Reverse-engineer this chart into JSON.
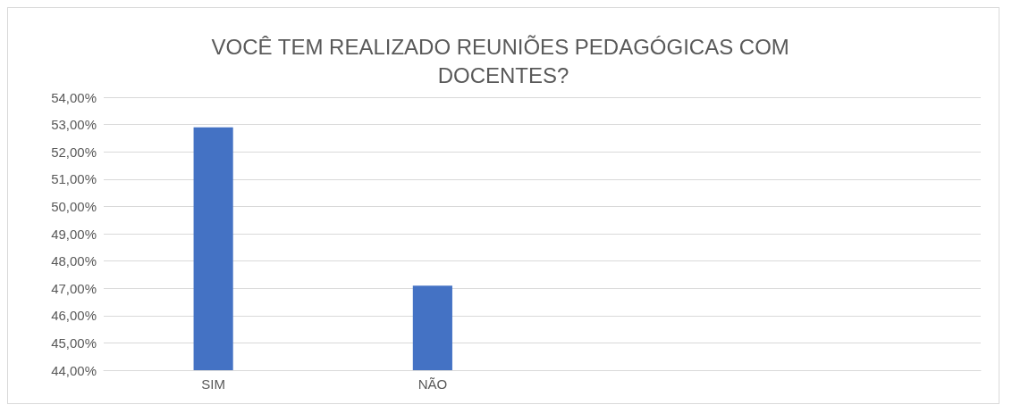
{
  "chart_data": {
    "type": "bar",
    "title": "VOCÊ TEM REALIZADO REUNIÕES PEDAGÓGICAS COM DOCENTES?",
    "categories": [
      "SIM",
      "NÃO",
      null,
      null
    ],
    "series": [
      {
        "color": "#4472c4",
        "values": [
          52.9,
          47.1,
          null,
          null
        ]
      }
    ],
    "ylim": [
      44,
      54
    ],
    "yticks": [
      {
        "value": 44,
        "label": "44,00%"
      },
      {
        "value": 45,
        "label": "45,00%"
      },
      {
        "value": 46,
        "label": "46,00%"
      },
      {
        "value": 47,
        "label": "47,00%"
      },
      {
        "value": 48,
        "label": "48,00%"
      },
      {
        "value": 49,
        "label": "49,00%"
      },
      {
        "value": 50,
        "label": "50,00%"
      },
      {
        "value": 51,
        "label": "51,00%"
      },
      {
        "value": 52,
        "label": "52,00%"
      },
      {
        "value": 53,
        "label": "53,00%"
      },
      {
        "value": 54,
        "label": "54,00%"
      }
    ],
    "grid": "y"
  }
}
